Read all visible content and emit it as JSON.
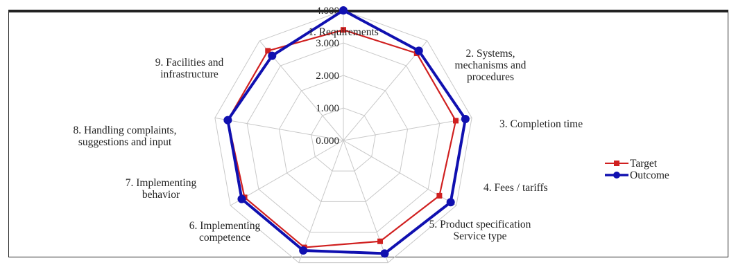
{
  "chart_data": {
    "type": "radar",
    "categories": [
      [
        "1. Requirements"
      ],
      [
        "2. Systems,",
        "mechanisms and",
        "procedures"
      ],
      [
        "3. Completion time"
      ],
      [
        "4. Fees / tariffs"
      ],
      [
        "5. Product specification",
        "Service type"
      ],
      [
        "6. Implementing",
        "competence"
      ],
      [
        "7. Implementing",
        "behavior"
      ],
      [
        "8. Handling complaints,",
        "suggestions and input"
      ],
      [
        "9. Facilities and",
        "infrastructure"
      ]
    ],
    "ticks": [
      "0.000",
      "1.000",
      "2.000",
      "3.000",
      "4.000"
    ],
    "rlim": [
      0,
      4
    ],
    "series": [
      {
        "name": "Target",
        "color": "#d02020",
        "marker": "square",
        "values": [
          3.4,
          3.5,
          3.5,
          3.4,
          3.3,
          3.5,
          3.5,
          3.6,
          3.6
        ]
      },
      {
        "name": "Outcome",
        "color": "#1010b0",
        "marker": "circle",
        "values": [
          4.0,
          3.6,
          3.8,
          3.8,
          3.7,
          3.6,
          3.6,
          3.6,
          3.4
        ]
      }
    ],
    "grid": true,
    "legend": "right"
  }
}
